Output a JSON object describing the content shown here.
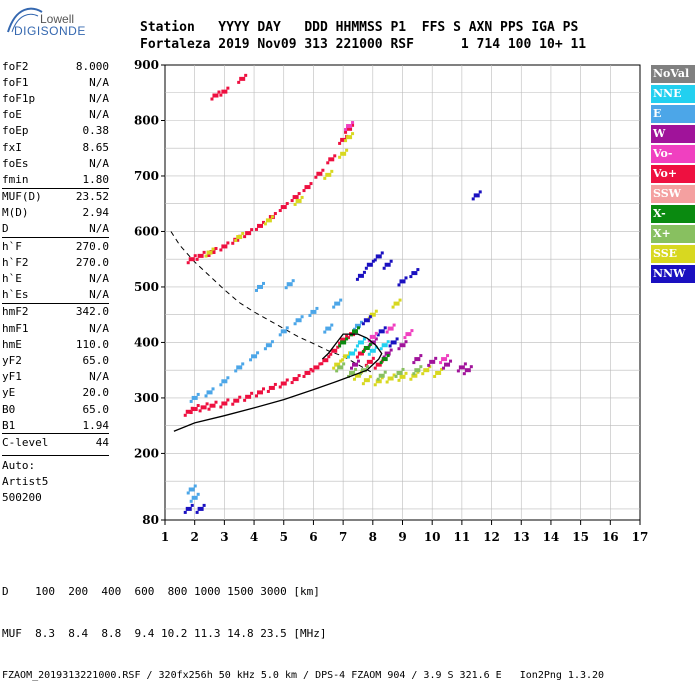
{
  "logo": {
    "line1": "Lowell",
    "line2": "DIGISONDE"
  },
  "header": {
    "line1": "Station   YYYY DAY   DDD HHMMSS P1  FFS S AXN PPS IGA PS",
    "line2": "Fortaleza 2019 Nov09 313 221000 RSF      1 714 100 10+ 11"
  },
  "params": [
    {
      "label": "foF2",
      "value": "8.000",
      "sep": false
    },
    {
      "label": "foF1",
      "value": "N/A",
      "sep": false
    },
    {
      "label": "foF1p",
      "value": "N/A",
      "sep": false
    },
    {
      "label": "foE",
      "value": "N/A",
      "sep": false
    },
    {
      "label": "foEp",
      "value": "0.38",
      "sep": false
    },
    {
      "label": "fxI",
      "value": "8.65",
      "sep": false
    },
    {
      "label": "foEs",
      "value": "N/A",
      "sep": false
    },
    {
      "label": "fmin",
      "value": "1.80",
      "sep": false
    },
    {
      "label": "MUF(D)",
      "value": "23.52",
      "sep": true
    },
    {
      "label": "M(D)",
      "value": "2.94",
      "sep": false
    },
    {
      "label": "D",
      "value": "N/A",
      "sep": false
    },
    {
      "label": "h`F",
      "value": "270.0",
      "sep": true
    },
    {
      "label": "h`F2",
      "value": "270.0",
      "sep": false
    },
    {
      "label": "h`E",
      "value": "N/A",
      "sep": false
    },
    {
      "label": "h`Es",
      "value": "N/A",
      "sep": false
    },
    {
      "label": "hmF2",
      "value": "342.0",
      "sep": true
    },
    {
      "label": "hmF1",
      "value": "N/A",
      "sep": false
    },
    {
      "label": "hmE",
      "value": "110.0",
      "sep": false
    },
    {
      "label": "yF2",
      "value": "65.0",
      "sep": false
    },
    {
      "label": "yF1",
      "value": "N/A",
      "sep": false
    },
    {
      "label": "yE",
      "value": "20.0",
      "sep": false
    },
    {
      "label": "B0",
      "value": "65.0",
      "sep": false
    },
    {
      "label": "B1",
      "value": "1.94",
      "sep": false
    },
    {
      "label": "C-level",
      "value": "44",
      "sep": true
    }
  ],
  "auto": {
    "line1": "Auto:",
    "line2": "Artist5",
    "line3": "500200"
  },
  "legend": [
    {
      "label": "NoVal",
      "color": "#808080"
    },
    {
      "label": "NNE",
      "color": "#22d0f0"
    },
    {
      "label": "E",
      "color": "#4ca6e8"
    },
    {
      "label": "W",
      "color": "#a0139a"
    },
    {
      "label": "Vo-",
      "color": "#f040c0"
    },
    {
      "label": "Vo+",
      "color": "#ee1040"
    },
    {
      "label": "SSW",
      "color": "#f4a0a0"
    },
    {
      "label": "X-",
      "color": "#0a8a10"
    },
    {
      "label": "X+",
      "color": "#88c060"
    },
    {
      "label": "SSE",
      "color": "#d8d820"
    },
    {
      "label": "NNW",
      "color": "#1a10c0"
    }
  ],
  "footer": {
    "line1": "D    100  200  400  600  800 1000 1500 3000 [km]",
    "line2": "MUF  8.3  8.4  8.8  9.4 10.2 11.3 14.8 23.5 [MHz]",
    "line3": "FZAOM_2019313221000.RSF / 320fx256h 50 kHz 5.0 km / DPS-4 FZAOM 904 / 3.9 S 321.6 E   Ion2Png 1.3.20"
  },
  "chart_data": {
    "type": "scatter",
    "xlim": [
      1,
      17
    ],
    "ylim": [
      80,
      900
    ],
    "x_ticks": [
      "1",
      "2",
      "3",
      "4",
      "5",
      "6",
      "7",
      "8",
      "9",
      "10",
      "11",
      "12",
      "13",
      "14",
      "15",
      "16",
      "17"
    ],
    "y_ticks": [
      "80",
      "200",
      "300",
      "400",
      "500",
      "600",
      "700",
      "800",
      "900"
    ],
    "grid": true,
    "series": [
      {
        "name": "Vo+",
        "color": "#ee1040",
        "points": [
          [
            1.8,
            275
          ],
          [
            2.0,
            280
          ],
          [
            2.3,
            283
          ],
          [
            2.6,
            286
          ],
          [
            3.0,
            290
          ],
          [
            3.4,
            295
          ],
          [
            3.8,
            302
          ],
          [
            4.2,
            310
          ],
          [
            4.6,
            318
          ],
          [
            5.0,
            326
          ],
          [
            5.4,
            334
          ],
          [
            5.8,
            345
          ],
          [
            6.1,
            355
          ],
          [
            6.4,
            368
          ],
          [
            6.7,
            385
          ],
          [
            7.0,
            405
          ],
          [
            7.3,
            415
          ],
          [
            7.6,
            380
          ],
          [
            7.9,
            365
          ],
          [
            8.2,
            360
          ],
          [
            1.9,
            550
          ],
          [
            2.2,
            556
          ],
          [
            2.6,
            563
          ],
          [
            3.0,
            573
          ],
          [
            3.4,
            585
          ],
          [
            3.8,
            597
          ],
          [
            4.2,
            610
          ],
          [
            4.6,
            626
          ],
          [
            5.0,
            644
          ],
          [
            5.4,
            662
          ],
          [
            5.8,
            680
          ],
          [
            6.2,
            704
          ],
          [
            6.6,
            730
          ],
          [
            7.0,
            765
          ],
          [
            7.2,
            785
          ],
          [
            2.7,
            845
          ],
          [
            3.0,
            852
          ],
          [
            3.6,
            875
          ]
        ]
      },
      {
        "name": "E",
        "color": "#4ca6e8",
        "points": [
          [
            2.0,
            300
          ],
          [
            2.5,
            310
          ],
          [
            3.0,
            330
          ],
          [
            3.5,
            355
          ],
          [
            4.0,
            375
          ],
          [
            4.5,
            395
          ],
          [
            5.0,
            420
          ],
          [
            5.5,
            440
          ],
          [
            6.0,
            455
          ],
          [
            6.5,
            425
          ],
          [
            4.2,
            500
          ],
          [
            5.2,
            505
          ],
          [
            6.8,
            470
          ],
          [
            7.5,
            430
          ],
          [
            1.9,
            135
          ],
          [
            2.0,
            120
          ]
        ]
      },
      {
        "name": "SSE",
        "color": "#d8d820",
        "points": [
          [
            2.5,
            562
          ],
          [
            3.5,
            590
          ],
          [
            4.5,
            620
          ],
          [
            5.5,
            655
          ],
          [
            6.5,
            702
          ],
          [
            7.0,
            740
          ],
          [
            7.2,
            770
          ],
          [
            7.5,
            340
          ],
          [
            7.8,
            332
          ],
          [
            8.2,
            330
          ],
          [
            8.6,
            335
          ],
          [
            9.0,
            338
          ],
          [
            9.4,
            340
          ],
          [
            9.8,
            350
          ],
          [
            10.2,
            345
          ],
          [
            6.8,
            360
          ],
          [
            7.1,
            375
          ],
          [
            8.0,
            450
          ],
          [
            8.8,
            470
          ]
        ]
      },
      {
        "name": "NNW",
        "color": "#1a10c0",
        "points": [
          [
            7.6,
            520
          ],
          [
            7.9,
            540
          ],
          [
            8.2,
            555
          ],
          [
            8.5,
            540
          ],
          [
            9.0,
            510
          ],
          [
            9.4,
            525
          ],
          [
            7.8,
            440
          ],
          [
            8.3,
            420
          ],
          [
            8.7,
            400
          ],
          [
            11.5,
            665
          ],
          [
            1.8,
            100
          ],
          [
            2.2,
            100
          ]
        ]
      },
      {
        "name": "W",
        "color": "#a0139a",
        "points": [
          [
            8.0,
            400
          ],
          [
            8.5,
            380
          ],
          [
            9.0,
            395
          ],
          [
            9.5,
            370
          ],
          [
            10.0,
            365
          ],
          [
            10.5,
            360
          ],
          [
            11.0,
            355
          ],
          [
            11.2,
            350
          ],
          [
            7.4,
            360
          ]
        ]
      },
      {
        "name": "X+",
        "color": "#88c060",
        "points": [
          [
            6.9,
            355
          ],
          [
            7.3,
            345
          ],
          [
            7.7,
            350
          ],
          [
            8.3,
            340
          ],
          [
            8.9,
            345
          ],
          [
            9.5,
            350
          ]
        ]
      },
      {
        "name": "X-",
        "color": "#0a8a10",
        "points": [
          [
            7.0,
            400
          ],
          [
            7.4,
            420
          ],
          [
            7.8,
            390
          ],
          [
            8.4,
            370
          ]
        ]
      },
      {
        "name": "Vo-",
        "color": "#f040c0",
        "points": [
          [
            7.2,
            790
          ],
          [
            8.0,
            410
          ],
          [
            8.6,
            425
          ],
          [
            9.2,
            415
          ],
          [
            10.4,
            370
          ]
        ]
      },
      {
        "name": "NNE",
        "color": "#22d0f0",
        "points": [
          [
            7.3,
            380
          ],
          [
            7.6,
            400
          ],
          [
            8.0,
            385
          ],
          [
            8.4,
            395
          ]
        ]
      }
    ],
    "profile_curve": [
      [
        1.3,
        240
      ],
      [
        2.0,
        255
      ],
      [
        3.0,
        268
      ],
      [
        4.0,
        282
      ],
      [
        5.0,
        297
      ],
      [
        6.0,
        315
      ],
      [
        6.8,
        330
      ],
      [
        7.3,
        340
      ],
      [
        7.8,
        350
      ],
      [
        8.0,
        360
      ],
      [
        8.2,
        370
      ],
      [
        8.3,
        380
      ],
      [
        8.1,
        395
      ],
      [
        7.8,
        408
      ],
      [
        7.5,
        415
      ],
      [
        7.0,
        415
      ],
      [
        6.5,
        380
      ],
      [
        6.3,
        370
      ]
    ],
    "muf_curve": [
      [
        1.2,
        600
      ],
      [
        1.5,
        575
      ],
      [
        2.0,
        545
      ],
      [
        2.5,
        520
      ],
      [
        3.0,
        495
      ],
      [
        3.5,
        472
      ],
      [
        4.0,
        455
      ],
      [
        4.5,
        440
      ],
      [
        5.0,
        425
      ],
      [
        5.5,
        410
      ],
      [
        6.0,
        398
      ],
      [
        6.5,
        385
      ],
      [
        7.0,
        375
      ],
      [
        7.5,
        360
      ],
      [
        8.0,
        345
      ]
    ]
  }
}
